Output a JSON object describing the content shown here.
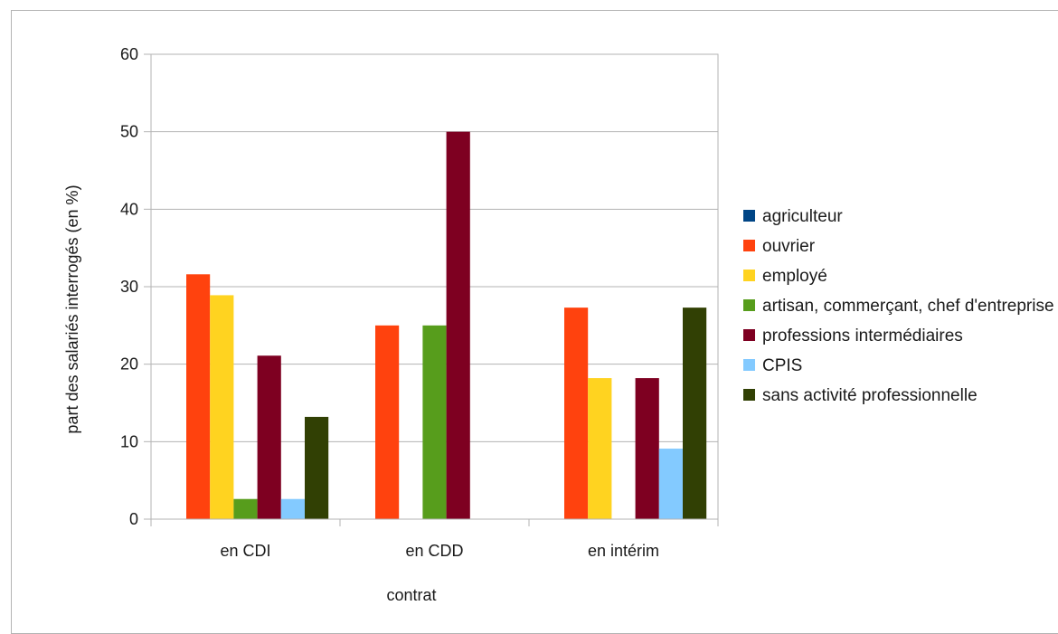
{
  "chart_data": {
    "type": "bar",
    "categories": [
      "en CDI",
      "en CDD",
      "en intérim"
    ],
    "series": [
      {
        "name": "agriculteur",
        "color": "#004586",
        "values": [
          0,
          0,
          0
        ]
      },
      {
        "name": "ouvrier",
        "color": "#ff420e",
        "values": [
          31.6,
          25,
          27.3
        ]
      },
      {
        "name": "employé",
        "color": "#ffd320",
        "values": [
          28.9,
          0,
          18.2
        ]
      },
      {
        "name": "artisan, commerçant, chef d'entreprise",
        "color": "#579d1c",
        "values": [
          2.6,
          25,
          0
        ]
      },
      {
        "name": "professions intermédiaires",
        "color": "#7e0021",
        "values": [
          21.1,
          50,
          18.2
        ]
      },
      {
        "name": "CPIS",
        "color": "#83caff",
        "values": [
          2.6,
          0,
          9.1
        ]
      },
      {
        "name": "sans activité professionnelle",
        "color": "#314004",
        "values": [
          13.2,
          0,
          27.3
        ]
      }
    ],
    "xlabel": "contrat",
    "ylabel": "part des salariés interrogés (en %)",
    "ylim": [
      0,
      60
    ],
    "yticks": [
      "0",
      "10",
      "20",
      "30",
      "40",
      "50",
      "60"
    ],
    "grid": true,
    "legend_position": "right"
  }
}
